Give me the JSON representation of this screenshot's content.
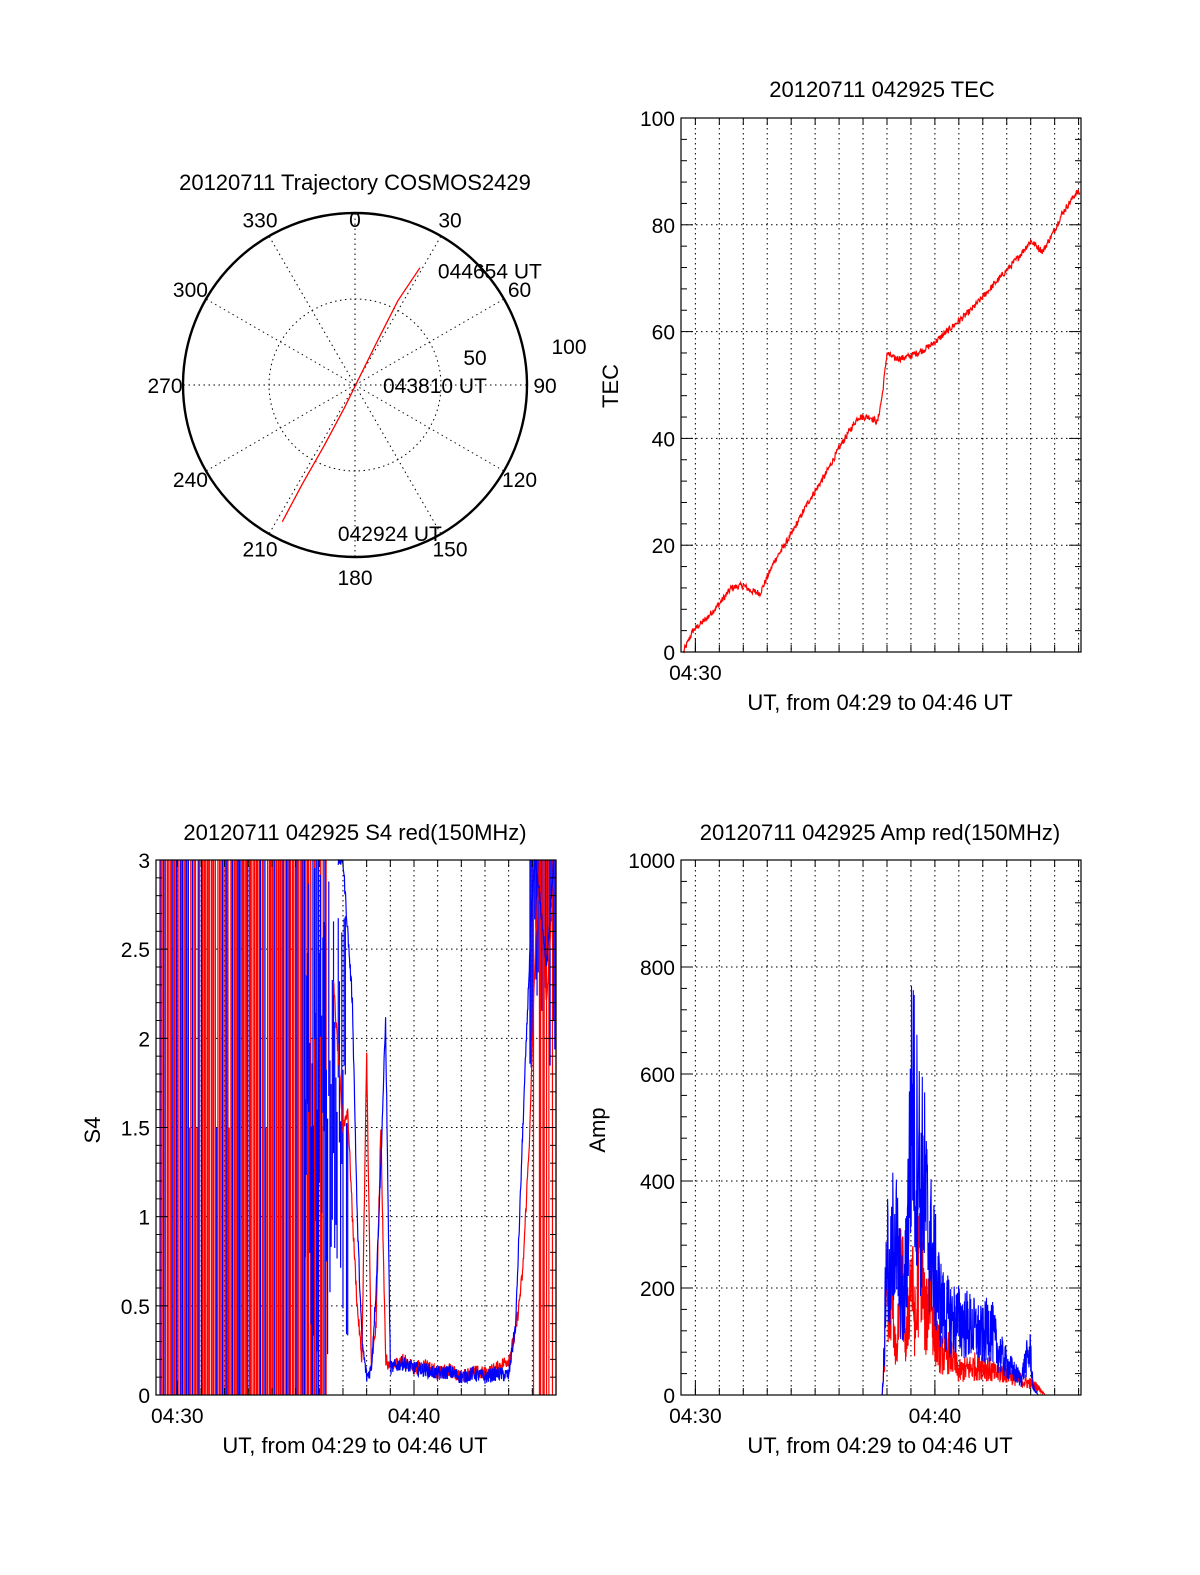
{
  "colors": {
    "red": "#ff0000",
    "blue": "#0000ff",
    "axis": "#000000"
  },
  "chart_data": [
    {
      "type": "polar",
      "title": "20120711 Trajectory COSMOS2429",
      "azimuth_labels": [
        "0",
        "30",
        "60",
        "90",
        "120",
        "150",
        "180",
        "210",
        "240",
        "270",
        "300",
        "330"
      ],
      "radius_labels": [
        "50",
        "100"
      ],
      "grid": true,
      "trajectory": {
        "color": "red",
        "points": [
          {
            "az": 208,
            "r": 90
          },
          {
            "az": 208,
            "r": 65
          },
          {
            "az": 207,
            "r": 40
          },
          {
            "az": 205,
            "r": 15
          },
          {
            "az": 30,
            "r": 5
          },
          {
            "az": 27,
            "r": 30
          },
          {
            "az": 27,
            "r": 55
          },
          {
            "az": 29,
            "r": 78
          }
        ]
      },
      "annotations": [
        {
          "text": "044654 UT",
          "az": 35,
          "r": 80
        },
        {
          "text": "043810 UT",
          "az": 95,
          "r": 14
        },
        {
          "text": "042924 UT",
          "az": 188,
          "r": 88
        }
      ]
    },
    {
      "type": "line",
      "title": "20120711 042925 TEC",
      "xlabel": "UT, from 04:29 to 04:46 UT",
      "ylabel": "TEC",
      "xlim": [
        29.4,
        46.1
      ],
      "ylim": [
        0,
        100
      ],
      "xticks": [
        {
          "v": 30,
          "label": "04:30"
        }
      ],
      "yticks": [
        0,
        20,
        40,
        60,
        80,
        100
      ],
      "grid": true,
      "series": [
        {
          "color": "red",
          "x": [
            29.5,
            29.9,
            30.4,
            31.0,
            31.5,
            32.0,
            32.3,
            32.7,
            33.3,
            34.0,
            34.7,
            35.4,
            36.1,
            36.8,
            37.3,
            37.6,
            37.8,
            38.0,
            38.3,
            38.6,
            39.0,
            39.5,
            40.0,
            40.5,
            41.0,
            41.5,
            42.0,
            42.5,
            43.0,
            43.5,
            44.0,
            44.5,
            45.0,
            45.3,
            45.6,
            45.9,
            46.05
          ],
          "y": [
            0,
            4,
            6,
            9,
            12,
            12.5,
            11.5,
            11,
            17,
            22,
            28,
            33,
            39,
            44,
            44,
            43,
            48,
            56,
            55,
            55,
            55.5,
            56.5,
            58,
            60,
            62,
            64,
            66.5,
            69,
            71.5,
            74,
            77,
            75,
            79,
            82,
            84,
            86,
            86
          ]
        }
      ]
    },
    {
      "type": "line",
      "title": "20120711 042925 S4 red(150MHz)",
      "xlabel": "UT, from 04:29 to 04:46 UT",
      "ylabel": "S4",
      "xlim": [
        29.1,
        46.0
      ],
      "ylim": [
        0,
        3
      ],
      "xticks": [
        {
          "v": 30,
          "label": "04:30"
        },
        {
          "v": 40,
          "label": "04:40"
        }
      ],
      "yticks": [
        0,
        0.5,
        1,
        1.5,
        2,
        2.5,
        3
      ],
      "ytick_labels": [
        "0",
        "0.5",
        "1",
        "1.5",
        "2",
        "2.5",
        "3"
      ],
      "grid": true,
      "noise_region_end": 36.3,
      "series": [
        {
          "color": "red",
          "x": [
            36.6,
            36.8,
            37.0,
            37.2,
            37.4,
            37.6,
            37.8,
            38.0,
            38.2,
            38.4,
            38.6,
            38.8,
            39.0,
            39.5,
            40.0,
            40.5,
            41.0,
            41.5,
            42.0,
            42.5,
            43.0,
            43.5,
            44.0,
            44.3,
            44.6,
            44.9,
            45.1,
            45.3,
            45.6,
            45.9
          ],
          "y": [
            2.3,
            1.9,
            1.5,
            1.6,
            1.0,
            0.5,
            0.2,
            1.9,
            0.15,
            0.4,
            1.5,
            0.2,
            0.15,
            0.2,
            0.15,
            0.17,
            0.12,
            0.14,
            0.1,
            0.13,
            0.12,
            0.15,
            0.2,
            0.35,
            0.7,
            1.5,
            2.4,
            3.0,
            2.2,
            2.9
          ]
        },
        {
          "color": "blue",
          "x": [
            36.8,
            37.0,
            37.2,
            37.4,
            37.6,
            37.8,
            38.0,
            38.2,
            38.4,
            38.6,
            38.8,
            39.0,
            39.5,
            40.0,
            40.5,
            41.0,
            41.5,
            42.0,
            42.5,
            43.0,
            43.5,
            44.0,
            44.3,
            44.6,
            44.9,
            45.1,
            45.3,
            45.6,
            45.9
          ],
          "y": [
            3.0,
            3.0,
            2.6,
            2.2,
            1.0,
            0.3,
            0.1,
            0.15,
            0.6,
            1.3,
            2.1,
            0.15,
            0.18,
            0.15,
            0.14,
            0.12,
            0.13,
            0.1,
            0.12,
            0.1,
            0.12,
            0.11,
            0.4,
            1.5,
            2.5,
            3.0,
            2.8,
            2.4,
            3.0
          ]
        }
      ]
    },
    {
      "type": "line",
      "title": "20120711 042925 Amp red(150MHz)",
      "xlabel": "UT, from 04:29 to 04:46 UT",
      "ylabel": "Amp",
      "xlim": [
        29.4,
        46.1
      ],
      "ylim": [
        0,
        1000
      ],
      "xticks": [
        {
          "v": 30,
          "label": "04:30"
        },
        {
          "v": 40,
          "label": "04:40"
        }
      ],
      "yticks": [
        0,
        200,
        400,
        600,
        800,
        1000
      ],
      "grid": true,
      "series": [
        {
          "color": "red",
          "x": [
            29.4,
            37.8,
            37.9,
            38.0,
            38.1,
            38.2,
            38.4,
            38.6,
            38.8,
            39.0,
            39.2,
            39.4,
            39.6,
            39.8,
            40.0,
            40.3,
            40.6,
            41.0,
            41.5,
            42.0,
            42.5,
            43.0,
            43.5,
            44.0,
            44.3,
            44.6,
            46.1
          ],
          "y": [
            0,
            0,
            100,
            380,
            150,
            300,
            80,
            350,
            120,
            330,
            160,
            400,
            180,
            280,
            150,
            100,
            110,
            60,
            70,
            80,
            55,
            60,
            40,
            30,
            20,
            0,
            0
          ]
        },
        {
          "color": "blue",
          "x": [
            29.4,
            37.8,
            37.9,
            38.0,
            38.1,
            38.3,
            38.5,
            38.7,
            38.9,
            39.0,
            39.1,
            39.2,
            39.3,
            39.4,
            39.5,
            39.7,
            39.9,
            40.1,
            40.3,
            40.6,
            41.0,
            41.4,
            41.8,
            42.0,
            42.3,
            42.6,
            43.0,
            43.3,
            43.6,
            43.8,
            44.0,
            44.1,
            44.3,
            46.1
          ],
          "y": [
            0,
            0,
            150,
            420,
            250,
            450,
            320,
            200,
            500,
            700,
            790,
            560,
            720,
            480,
            580,
            430,
            360,
            280,
            220,
            200,
            190,
            180,
            160,
            150,
            180,
            120,
            80,
            60,
            40,
            90,
            110,
            20,
            0,
            0
          ]
        }
      ]
    }
  ]
}
